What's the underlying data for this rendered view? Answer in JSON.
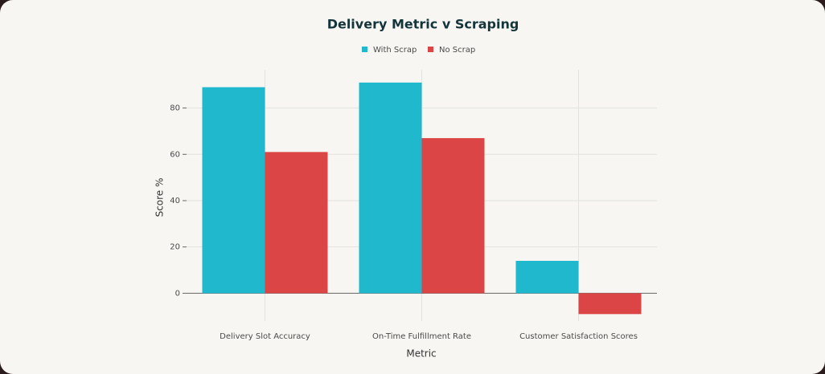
{
  "chart_data": {
    "type": "bar",
    "title": "Delivery Metric v Scraping",
    "x_label": "Metric",
    "y_label": "Score %",
    "categories": [
      "Delivery Slot Accuracy",
      "On-Time Fulfillment Rate",
      "Customer Satisfaction Scores"
    ],
    "series": [
      {
        "name": "With Scrap",
        "color": "#1fb8cd",
        "values": [
          89,
          91,
          14
        ]
      },
      {
        "name": "No Scrap",
        "color": "#db4545",
        "values": [
          61,
          67,
          -9
        ]
      }
    ],
    "ylim": [
      -12,
      96.5
    ],
    "yticks": [
      0,
      20,
      40,
      60,
      80
    ],
    "grid": true,
    "legend": "top"
  }
}
